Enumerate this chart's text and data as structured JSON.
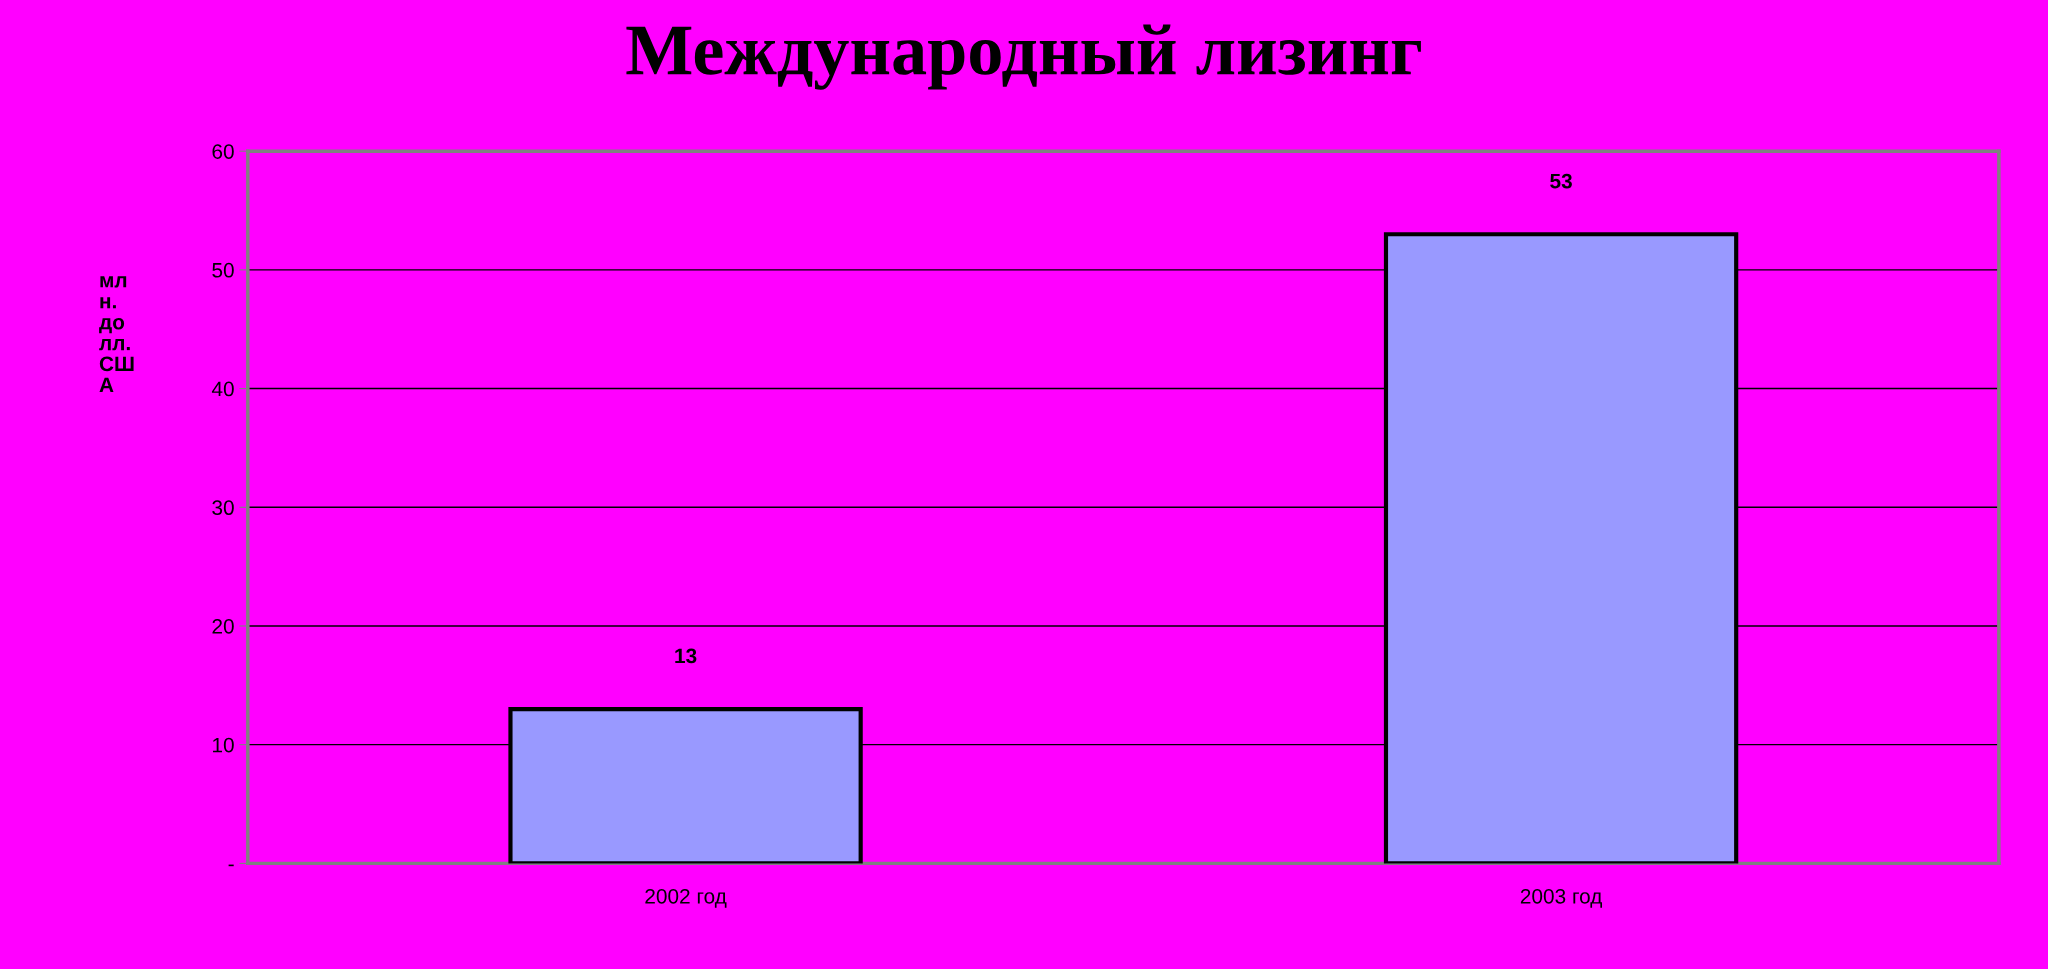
{
  "chart_data": {
    "type": "bar",
    "title": "Международный лизинг",
    "ylabel": "мл\nн.\nдо\nлл.\nСШ\nА",
    "categories": [
      "2002 год",
      "2003 год"
    ],
    "series": [
      {
        "color": "#9999ff",
        "values": [
          13,
          53
        ]
      }
    ],
    "ylim": [
      0,
      60
    ],
    "yticks": [
      {
        "value": 0,
        "label": "-"
      },
      10,
      20,
      30,
      40,
      50,
      60
    ],
    "grid": "y",
    "data_labels": true,
    "legend": false
  }
}
